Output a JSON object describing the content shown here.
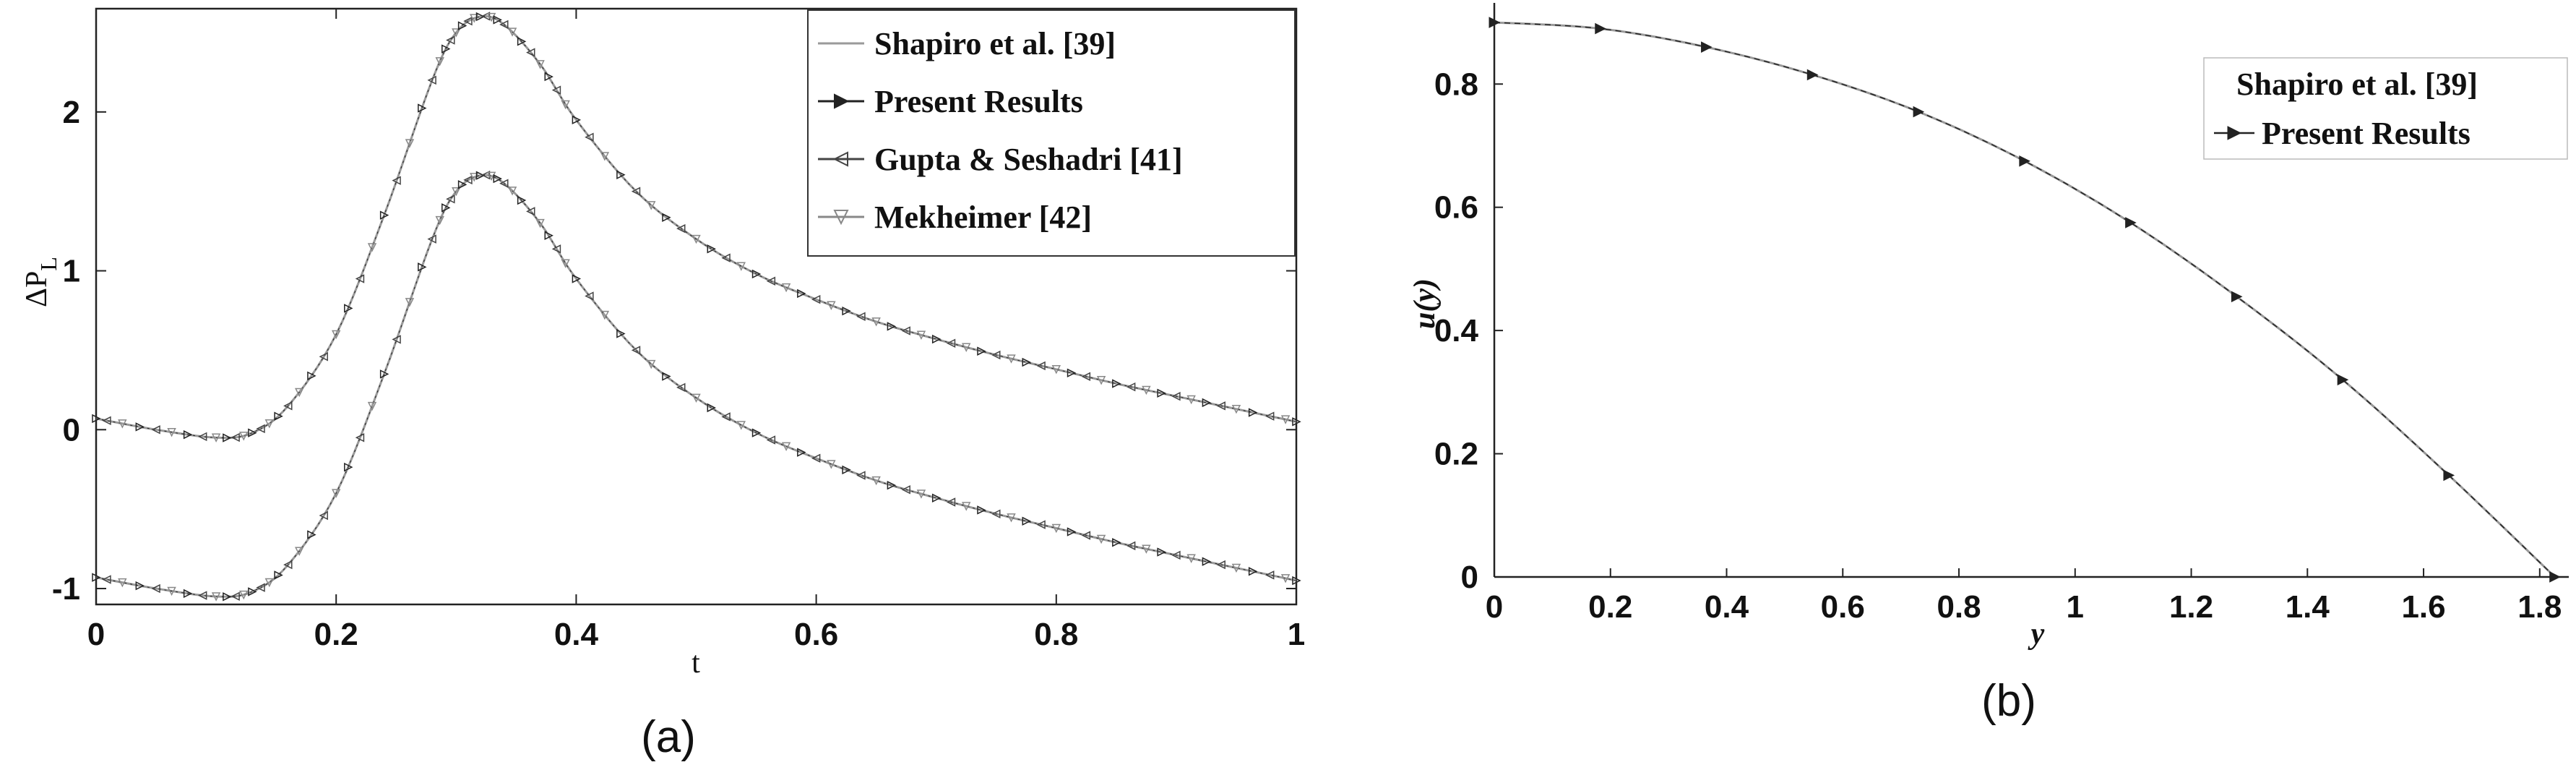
{
  "chart_data": [
    {
      "id": "a",
      "type": "line",
      "caption": "(a)",
      "xlabel": "t",
      "ylabel_main": "ΔP",
      "ylabel_sub": "L",
      "xlim": [
        0,
        1
      ],
      "ylim": [
        -1.1,
        2.65
      ],
      "xticks": [
        "0",
        "0.2",
        "0.4",
        "0.6",
        "0.8",
        "1"
      ],
      "yticks": [
        "-1",
        "0",
        "1",
        "2"
      ],
      "grid": false,
      "legend_position": "top-right",
      "legend": [
        {
          "name": "Shapiro et al. [39]",
          "marker": "none",
          "color": "#9a9a9a"
        },
        {
          "name": "Present Results",
          "marker": "triangle-right",
          "color": "#222222"
        },
        {
          "name": "Gupta & Seshadri [41]",
          "marker": "triangle-left",
          "color": "#444444"
        },
        {
          "name": "Mekheimer [42]",
          "marker": "triangle-down",
          "color": "#888888"
        }
      ],
      "curves": [
        {
          "label": "upper",
          "x": [
            0,
            0.05,
            0.1,
            0.13,
            0.16,
            0.2,
            0.24,
            0.28,
            0.3,
            0.32,
            0.34,
            0.37,
            0.4,
            0.45,
            0.5,
            0.55,
            0.6,
            0.65,
            0.7,
            0.75,
            0.8,
            0.85,
            0.9,
            0.95,
            1.0
          ],
          "y": [
            0.07,
            0.0,
            -0.05,
            -0.02,
            0.15,
            0.6,
            1.35,
            2.2,
            2.5,
            2.6,
            2.55,
            2.3,
            1.95,
            1.5,
            1.2,
            0.98,
            0.82,
            0.68,
            0.57,
            0.47,
            0.38,
            0.29,
            0.21,
            0.13,
            0.05
          ]
        },
        {
          "label": "lower",
          "x": [
            0,
            0.05,
            0.1,
            0.13,
            0.16,
            0.2,
            0.24,
            0.28,
            0.3,
            0.32,
            0.34,
            0.37,
            0.4,
            0.45,
            0.5,
            0.55,
            0.6,
            0.65,
            0.7,
            0.75,
            0.8,
            0.85,
            0.9,
            0.95,
            1.0
          ],
          "y": [
            -0.93,
            -1.0,
            -1.05,
            -1.02,
            -0.85,
            -0.4,
            0.35,
            1.2,
            1.5,
            1.6,
            1.55,
            1.3,
            0.95,
            0.5,
            0.2,
            -0.02,
            -0.18,
            -0.32,
            -0.43,
            -0.53,
            -0.62,
            -0.71,
            -0.79,
            -0.87,
            -0.95
          ]
        }
      ]
    },
    {
      "id": "b",
      "type": "line",
      "caption": "(b)",
      "xlabel": "y",
      "ylabel": "u(y)",
      "xlim": [
        0,
        1.85
      ],
      "ylim": [
        0,
        0.92
      ],
      "xticks": [
        "0",
        "0.2",
        "0.4",
        "0.6",
        "0.8",
        "1",
        "1.2",
        "1.4",
        "1.6",
        "1.8"
      ],
      "yticks": [
        "0",
        "0.2",
        "0.4",
        "0.6",
        "0.8"
      ],
      "grid": false,
      "legend_position": "top-right",
      "legend": [
        {
          "name": "Shapiro et al. [39]",
          "marker": "none",
          "color": "#9a9a9a"
        },
        {
          "name": "Present Results",
          "marker": "triangle-right",
          "color": "#222222"
        }
      ],
      "x": [
        0,
        0.1826,
        0.3652,
        0.5478,
        0.7304,
        0.913,
        1.0956,
        1.2782,
        1.4608,
        1.6434,
        1.826
      ],
      "y": [
        0.9,
        0.89,
        0.86,
        0.815,
        0.755,
        0.675,
        0.575,
        0.455,
        0.32,
        0.165,
        0.0
      ]
    }
  ]
}
